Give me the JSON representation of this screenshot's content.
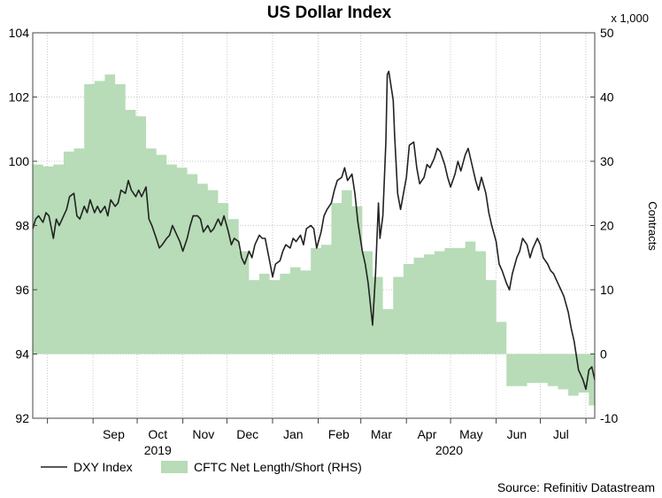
{
  "chart_data": {
    "type": "line",
    "title": "US Dollar Index",
    "source": "Source: Refinitiv Datastream",
    "left_axis": {
      "ylim": [
        92,
        104
      ],
      "ticks": [
        92,
        94,
        96,
        98,
        100,
        102,
        104
      ]
    },
    "right_axis": {
      "label": "Contracts",
      "unit_note": "x 1,000",
      "ylim": [
        -10,
        50
      ],
      "ticks": [
        -10,
        0,
        10,
        20,
        30,
        40,
        50
      ]
    },
    "x_axis": {
      "xlim": [
        "2019-07-22",
        "2020-08-07"
      ],
      "month_labels": [
        {
          "label": "Sep",
          "date": "2019-09-15"
        },
        {
          "label": "Oct",
          "date": "2019-10-15"
        },
        {
          "label": "Nov",
          "date": "2019-11-15"
        },
        {
          "label": "Dec",
          "date": "2019-12-15"
        },
        {
          "label": "Jan",
          "date": "2020-01-15"
        },
        {
          "label": "Feb",
          "date": "2020-02-15"
        },
        {
          "label": "Mar",
          "date": "2020-03-15"
        },
        {
          "label": "Apr",
          "date": "2020-04-15"
        },
        {
          "label": "May",
          "date": "2020-05-15"
        },
        {
          "label": "Jun",
          "date": "2020-06-15"
        },
        {
          "label": "Jul",
          "date": "2020-07-15"
        }
      ],
      "gridlines": [
        "2019-08-01",
        "2019-09-01",
        "2019-10-01",
        "2019-11-01",
        "2019-12-01",
        "2020-01-01",
        "2020-02-01",
        "2020-03-01",
        "2020-04-01",
        "2020-05-01",
        "2020-06-01",
        "2020-07-01",
        "2020-08-01"
      ],
      "year_labels": [
        {
          "label": "2019",
          "date": "2019-10-15"
        },
        {
          "label": "2020",
          "date": "2020-04-30"
        }
      ]
    },
    "grid": true,
    "legend": {
      "placement": "bottom-left",
      "entries": [
        {
          "label": "DXY Index",
          "kind": "line",
          "color": "#222222"
        },
        {
          "label": "CFTC Net Length/Short (RHS)",
          "kind": "area",
          "color": "#b7dcb7"
        }
      ]
    },
    "series": [
      {
        "name": "DXY Index",
        "axis": "left",
        "color": "#222222",
        "points": [
          [
            "2019-07-22",
            97.9
          ],
          [
            "2019-07-24",
            98.2
          ],
          [
            "2019-07-26",
            98.3
          ],
          [
            "2019-07-29",
            98.1
          ],
          [
            "2019-07-31",
            98.4
          ],
          [
            "2019-08-02",
            98.3
          ],
          [
            "2019-08-05",
            97.6
          ],
          [
            "2019-08-07",
            98.2
          ],
          [
            "2019-08-09",
            98.0
          ],
          [
            "2019-08-12",
            98.3
          ],
          [
            "2019-08-14",
            98.5
          ],
          [
            "2019-08-16",
            98.9
          ],
          [
            "2019-08-19",
            99.0
          ],
          [
            "2019-08-21",
            98.3
          ],
          [
            "2019-08-23",
            98.2
          ],
          [
            "2019-08-26",
            98.6
          ],
          [
            "2019-08-28",
            98.4
          ],
          [
            "2019-08-30",
            98.8
          ],
          [
            "2019-09-02",
            98.4
          ],
          [
            "2019-09-04",
            98.6
          ],
          [
            "2019-09-06",
            98.4
          ],
          [
            "2019-09-09",
            98.6
          ],
          [
            "2019-09-11",
            98.3
          ],
          [
            "2019-09-13",
            98.8
          ],
          [
            "2019-09-16",
            98.6
          ],
          [
            "2019-09-18",
            98.7
          ],
          [
            "2019-09-20",
            99.1
          ],
          [
            "2019-09-23",
            99.0
          ],
          [
            "2019-09-25",
            99.4
          ],
          [
            "2019-09-27",
            99.1
          ],
          [
            "2019-09-30",
            98.9
          ],
          [
            "2019-10-02",
            99.1
          ],
          [
            "2019-10-04",
            98.9
          ],
          [
            "2019-10-07",
            99.2
          ],
          [
            "2019-10-09",
            98.2
          ],
          [
            "2019-10-11",
            98.0
          ],
          [
            "2019-10-14",
            97.6
          ],
          [
            "2019-10-16",
            97.3
          ],
          [
            "2019-10-18",
            97.4
          ],
          [
            "2019-10-21",
            97.6
          ],
          [
            "2019-10-23",
            97.7
          ],
          [
            "2019-10-25",
            98.0
          ],
          [
            "2019-10-28",
            97.7
          ],
          [
            "2019-10-30",
            97.5
          ],
          [
            "2019-11-01",
            97.2
          ],
          [
            "2019-11-04",
            97.6
          ],
          [
            "2019-11-06",
            98.0
          ],
          [
            "2019-11-08",
            98.3
          ],
          [
            "2019-11-11",
            98.3
          ],
          [
            "2019-11-13",
            98.2
          ],
          [
            "2019-11-15",
            97.8
          ],
          [
            "2019-11-18",
            98.0
          ],
          [
            "2019-11-20",
            97.8
          ],
          [
            "2019-11-22",
            97.9
          ],
          [
            "2019-11-25",
            98.2
          ],
          [
            "2019-11-27",
            98.0
          ],
          [
            "2019-11-29",
            98.3
          ],
          [
            "2019-12-02",
            97.8
          ],
          [
            "2019-12-04",
            97.4
          ],
          [
            "2019-12-06",
            97.6
          ],
          [
            "2019-12-09",
            97.5
          ],
          [
            "2019-12-11",
            97.0
          ],
          [
            "2019-12-13",
            96.8
          ],
          [
            "2019-12-16",
            97.2
          ],
          [
            "2019-12-18",
            97.0
          ],
          [
            "2019-12-20",
            97.4
          ],
          [
            "2019-12-23",
            97.7
          ],
          [
            "2019-12-25",
            97.6
          ],
          [
            "2019-12-27",
            97.6
          ],
          [
            "2019-12-30",
            96.9
          ],
          [
            "2020-01-01",
            96.4
          ],
          [
            "2020-01-03",
            96.8
          ],
          [
            "2020-01-06",
            96.9
          ],
          [
            "2020-01-08",
            97.2
          ],
          [
            "2020-01-10",
            97.4
          ],
          [
            "2020-01-13",
            97.3
          ],
          [
            "2020-01-15",
            97.6
          ],
          [
            "2020-01-17",
            97.5
          ],
          [
            "2020-01-20",
            97.7
          ],
          [
            "2020-01-22",
            97.4
          ],
          [
            "2020-01-24",
            97.9
          ],
          [
            "2020-01-27",
            98.0
          ],
          [
            "2020-01-29",
            97.9
          ],
          [
            "2020-01-31",
            97.3
          ],
          [
            "2020-02-03",
            97.8
          ],
          [
            "2020-02-05",
            98.3
          ],
          [
            "2020-02-07",
            98.5
          ],
          [
            "2020-02-10",
            98.7
          ],
          [
            "2020-02-12",
            99.1
          ],
          [
            "2020-02-14",
            99.4
          ],
          [
            "2020-02-17",
            99.5
          ],
          [
            "2020-02-19",
            99.8
          ],
          [
            "2020-02-21",
            99.4
          ],
          [
            "2020-02-24",
            99.6
          ],
          [
            "2020-02-26",
            99.0
          ],
          [
            "2020-02-28",
            98.1
          ],
          [
            "2020-03-02",
            97.2
          ],
          [
            "2020-03-04",
            96.8
          ],
          [
            "2020-03-06",
            96.2
          ],
          [
            "2020-03-09",
            94.9
          ],
          [
            "2020-03-11",
            96.5
          ],
          [
            "2020-03-13",
            98.7
          ],
          [
            "2020-03-14",
            97.6
          ],
          [
            "2020-03-16",
            98.3
          ],
          [
            "2020-03-18",
            100.6
          ],
          [
            "2020-03-19",
            102.7
          ],
          [
            "2020-03-20",
            102.8
          ],
          [
            "2020-03-23",
            101.9
          ],
          [
            "2020-03-24",
            100.8
          ],
          [
            "2020-03-26",
            99.0
          ],
          [
            "2020-03-28",
            98.5
          ],
          [
            "2020-03-30",
            99.0
          ],
          [
            "2020-04-01",
            99.5
          ],
          [
            "2020-04-03",
            100.5
          ],
          [
            "2020-04-06",
            100.6
          ],
          [
            "2020-04-08",
            99.8
          ],
          [
            "2020-04-10",
            99.3
          ],
          [
            "2020-04-13",
            99.5
          ],
          [
            "2020-04-15",
            99.9
          ],
          [
            "2020-04-17",
            99.8
          ],
          [
            "2020-04-20",
            100.1
          ],
          [
            "2020-04-22",
            100.4
          ],
          [
            "2020-04-24",
            100.3
          ],
          [
            "2020-04-27",
            99.9
          ],
          [
            "2020-04-29",
            99.5
          ],
          [
            "2020-05-01",
            99.2
          ],
          [
            "2020-05-04",
            99.6
          ],
          [
            "2020-05-06",
            100.0
          ],
          [
            "2020-05-08",
            99.7
          ],
          [
            "2020-05-11",
            100.2
          ],
          [
            "2020-05-13",
            100.4
          ],
          [
            "2020-05-15",
            100.0
          ],
          [
            "2020-05-18",
            99.4
          ],
          [
            "2020-05-20",
            99.1
          ],
          [
            "2020-05-22",
            99.5
          ],
          [
            "2020-05-25",
            99.0
          ],
          [
            "2020-05-27",
            98.4
          ],
          [
            "2020-05-29",
            98.0
          ],
          [
            "2020-06-01",
            97.5
          ],
          [
            "2020-06-03",
            96.8
          ],
          [
            "2020-06-05",
            96.6
          ],
          [
            "2020-06-08",
            96.2
          ],
          [
            "2020-06-10",
            96.0
          ],
          [
            "2020-06-12",
            96.5
          ],
          [
            "2020-06-15",
            97.0
          ],
          [
            "2020-06-17",
            97.2
          ],
          [
            "2020-06-19",
            97.6
          ],
          [
            "2020-06-22",
            97.4
          ],
          [
            "2020-06-24",
            97.0
          ],
          [
            "2020-06-26",
            97.3
          ],
          [
            "2020-06-29",
            97.6
          ],
          [
            "2020-07-01",
            97.4
          ],
          [
            "2020-07-03",
            97.0
          ],
          [
            "2020-07-06",
            96.8
          ],
          [
            "2020-07-08",
            96.6
          ],
          [
            "2020-07-10",
            96.5
          ],
          [
            "2020-07-13",
            96.2
          ],
          [
            "2020-07-15",
            96.0
          ],
          [
            "2020-07-17",
            95.8
          ],
          [
            "2020-07-20",
            95.3
          ],
          [
            "2020-07-22",
            94.8
          ],
          [
            "2020-07-24",
            94.4
          ],
          [
            "2020-07-27",
            93.5
          ],
          [
            "2020-07-28",
            93.4
          ],
          [
            "2020-07-30",
            93.2
          ],
          [
            "2020-08-01",
            92.9
          ],
          [
            "2020-08-03",
            93.5
          ],
          [
            "2020-08-05",
            93.6
          ],
          [
            "2020-08-07",
            93.2
          ]
        ]
      },
      {
        "name": "CFTC Net Length/Short (RHS)",
        "axis": "right",
        "color": "#b7dcb7",
        "step_points": [
          [
            "2019-07-22",
            29.5
          ],
          [
            "2019-07-29",
            29.2
          ],
          [
            "2019-08-05",
            29.5
          ],
          [
            "2019-08-12",
            31.5
          ],
          [
            "2019-08-19",
            32.0
          ],
          [
            "2019-08-26",
            42.0
          ],
          [
            "2019-09-02",
            42.5
          ],
          [
            "2019-09-09",
            43.5
          ],
          [
            "2019-09-16",
            42.0
          ],
          [
            "2019-09-23",
            38.0
          ],
          [
            "2019-09-30",
            37.0
          ],
          [
            "2019-10-07",
            32.0
          ],
          [
            "2019-10-14",
            31.0
          ],
          [
            "2019-10-21",
            29.5
          ],
          [
            "2019-10-28",
            29.0
          ],
          [
            "2019-11-04",
            28.0
          ],
          [
            "2019-11-11",
            26.5
          ],
          [
            "2019-11-18",
            25.5
          ],
          [
            "2019-11-25",
            23.5
          ],
          [
            "2019-12-02",
            21.0
          ],
          [
            "2019-12-09",
            16.0
          ],
          [
            "2019-12-16",
            11.5
          ],
          [
            "2019-12-23",
            12.5
          ],
          [
            "2019-12-30",
            11.5
          ],
          [
            "2020-01-06",
            12.5
          ],
          [
            "2020-01-13",
            13.5
          ],
          [
            "2020-01-20",
            13.0
          ],
          [
            "2020-01-27",
            16.5
          ],
          [
            "2020-02-03",
            17.0
          ],
          [
            "2020-02-10",
            23.5
          ],
          [
            "2020-02-17",
            25.5
          ],
          [
            "2020-02-24",
            23.0
          ],
          [
            "2020-03-02",
            16.0
          ],
          [
            "2020-03-09",
            12.0
          ],
          [
            "2020-03-16",
            7.0
          ],
          [
            "2020-03-23",
            12.0
          ],
          [
            "2020-03-30",
            14.0
          ],
          [
            "2020-04-06",
            15.0
          ],
          [
            "2020-04-13",
            15.5
          ],
          [
            "2020-04-20",
            16.0
          ],
          [
            "2020-04-27",
            16.5
          ],
          [
            "2020-05-04",
            16.5
          ],
          [
            "2020-05-11",
            17.5
          ],
          [
            "2020-05-18",
            16.0
          ],
          [
            "2020-05-25",
            11.5
          ],
          [
            "2020-06-01",
            5.0
          ],
          [
            "2020-06-08",
            -5.0
          ],
          [
            "2020-06-15",
            -5.0
          ],
          [
            "2020-06-22",
            -4.5
          ],
          [
            "2020-06-29",
            -4.5
          ],
          [
            "2020-07-06",
            -5.0
          ],
          [
            "2020-07-13",
            -5.5
          ],
          [
            "2020-07-20",
            -6.5
          ],
          [
            "2020-07-27",
            -6.0
          ],
          [
            "2020-08-03",
            -8.0
          ],
          [
            "2020-08-07",
            -8.0
          ]
        ]
      }
    ]
  }
}
